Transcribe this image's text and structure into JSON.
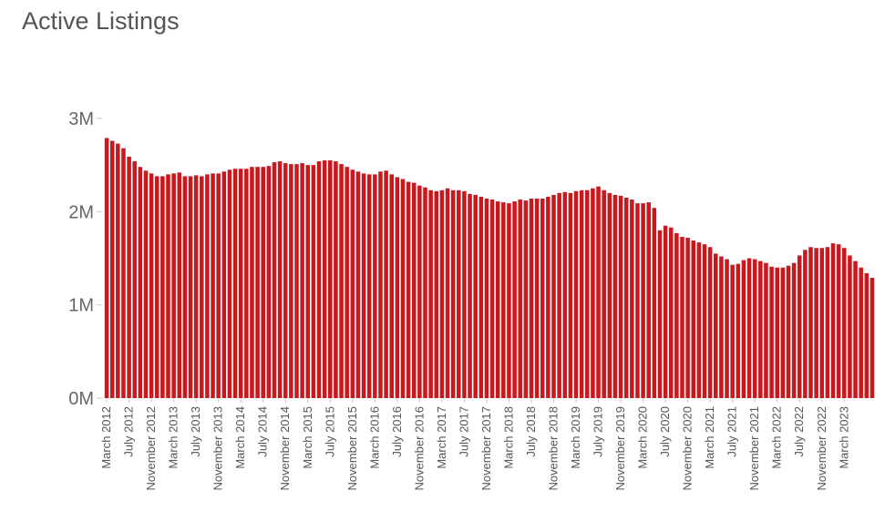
{
  "chart_data": {
    "type": "bar",
    "title": "Active Listings",
    "xlabel": "",
    "ylabel": "",
    "ylim": [
      0,
      3000000
    ],
    "grid": false,
    "legend": "none",
    "bar_color": "#c8191f",
    "yticks": [
      {
        "value": 0,
        "label": "0M"
      },
      {
        "value": 1000000,
        "label": "1M"
      },
      {
        "value": 2000000,
        "label": "2M"
      },
      {
        "value": 3000000,
        "label": "3M"
      }
    ],
    "x_tick_labels": [
      "March 2012",
      "July 2012",
      "November 2012",
      "March 2013",
      "July 2013",
      "November 2013",
      "March 2014",
      "July 2014",
      "November 2014",
      "March 2015",
      "July 2015",
      "November 2015",
      "March 2016",
      "July 2016",
      "November 2016",
      "March 2017",
      "July 2017",
      "November 2017",
      "March 2018",
      "July 2018",
      "November 2018",
      "March 2019",
      "July 2019",
      "November 2019",
      "March 2020",
      "July 2020",
      "November 2020",
      "March 2021",
      "July 2021",
      "November 2021",
      "March 2022",
      "July 2022",
      "November 2022",
      "March 2023"
    ],
    "categories": [
      "March 2012",
      "April 2012",
      "May 2012",
      "June 2012",
      "July 2012",
      "August 2012",
      "September 2012",
      "October 2012",
      "November 2012",
      "December 2012",
      "January 2013",
      "February 2013",
      "March 2013",
      "April 2013",
      "May 2013",
      "June 2013",
      "July 2013",
      "August 2013",
      "September 2013",
      "October 2013",
      "November 2013",
      "December 2013",
      "January 2014",
      "February 2014",
      "March 2014",
      "April 2014",
      "May 2014",
      "June 2014",
      "July 2014",
      "August 2014",
      "September 2014",
      "October 2014",
      "November 2014",
      "December 2014",
      "January 2015",
      "February 2015",
      "March 2015",
      "April 2015",
      "May 2015",
      "June 2015",
      "July 2015",
      "August 2015",
      "September 2015",
      "October 2015",
      "November 2015",
      "December 2015",
      "January 2016",
      "February 2016",
      "March 2016",
      "April 2016",
      "May 2016",
      "June 2016",
      "July 2016",
      "August 2016",
      "September 2016",
      "October 2016",
      "November 2016",
      "December 2016",
      "January 2017",
      "February 2017",
      "March 2017",
      "April 2017",
      "May 2017",
      "June 2017",
      "July 2017",
      "August 2017",
      "September 2017",
      "October 2017",
      "November 2017",
      "December 2017",
      "January 2018",
      "February 2018",
      "March 2018",
      "April 2018",
      "May 2018",
      "June 2018",
      "July 2018",
      "August 2018",
      "September 2018",
      "October 2018",
      "November 2018",
      "December 2018",
      "January 2019",
      "February 2019",
      "March 2019",
      "April 2019",
      "May 2019",
      "June 2019",
      "July 2019",
      "August 2019",
      "September 2019",
      "October 2019",
      "November 2019",
      "December 2019",
      "January 2020",
      "February 2020",
      "March 2020",
      "April 2020",
      "May 2020",
      "June 2020",
      "July 2020",
      "August 2020",
      "September 2020",
      "October 2020",
      "November 2020",
      "December 2020",
      "January 2021",
      "February 2021",
      "March 2021",
      "April 2021",
      "May 2021",
      "June 2021",
      "July 2021",
      "August 2021",
      "September 2021",
      "October 2021",
      "November 2021",
      "December 2021",
      "January 2022",
      "February 2022",
      "March 2022",
      "April 2022",
      "May 2022",
      "June 2022",
      "July 2022",
      "August 2022",
      "September 2022",
      "October 2022",
      "November 2022",
      "December 2022",
      "January 2023",
      "February 2023",
      "March 2023",
      "April 2023",
      "May 2023",
      "June 2023",
      "July 2023",
      "August 2023"
    ],
    "values": [
      2790000,
      2760000,
      2730000,
      2680000,
      2590000,
      2540000,
      2480000,
      2440000,
      2410000,
      2380000,
      2380000,
      2400000,
      2410000,
      2420000,
      2380000,
      2380000,
      2390000,
      2380000,
      2400000,
      2410000,
      2410000,
      2430000,
      2450000,
      2460000,
      2460000,
      2460000,
      2480000,
      2480000,
      2480000,
      2490000,
      2530000,
      2540000,
      2520000,
      2510000,
      2510000,
      2520000,
      2500000,
      2500000,
      2540000,
      2550000,
      2550000,
      2540000,
      2510000,
      2480000,
      2450000,
      2430000,
      2410000,
      2400000,
      2400000,
      2430000,
      2440000,
      2400000,
      2370000,
      2350000,
      2320000,
      2310000,
      2280000,
      2260000,
      2230000,
      2220000,
      2230000,
      2250000,
      2230000,
      2230000,
      2220000,
      2190000,
      2180000,
      2160000,
      2140000,
      2130000,
      2110000,
      2100000,
      2090000,
      2110000,
      2130000,
      2120000,
      2140000,
      2140000,
      2140000,
      2160000,
      2180000,
      2200000,
      2210000,
      2200000,
      2220000,
      2230000,
      2230000,
      2250000,
      2270000,
      2230000,
      2200000,
      2180000,
      2170000,
      2150000,
      2130000,
      2090000,
      2090000,
      2100000,
      2040000,
      1800000,
      1850000,
      1830000,
      1770000,
      1730000,
      1720000,
      1690000,
      1670000,
      1650000,
      1620000,
      1550000,
      1520000,
      1490000,
      1430000,
      1440000,
      1480000,
      1500000,
      1490000,
      1470000,
      1450000,
      1410000,
      1400000,
      1400000,
      1420000,
      1450000,
      1530000,
      1590000,
      1620000,
      1610000,
      1610000,
      1620000,
      1660000,
      1650000,
      1610000,
      1530000,
      1470000,
      1400000,
      1340000,
      1290000
    ]
  }
}
